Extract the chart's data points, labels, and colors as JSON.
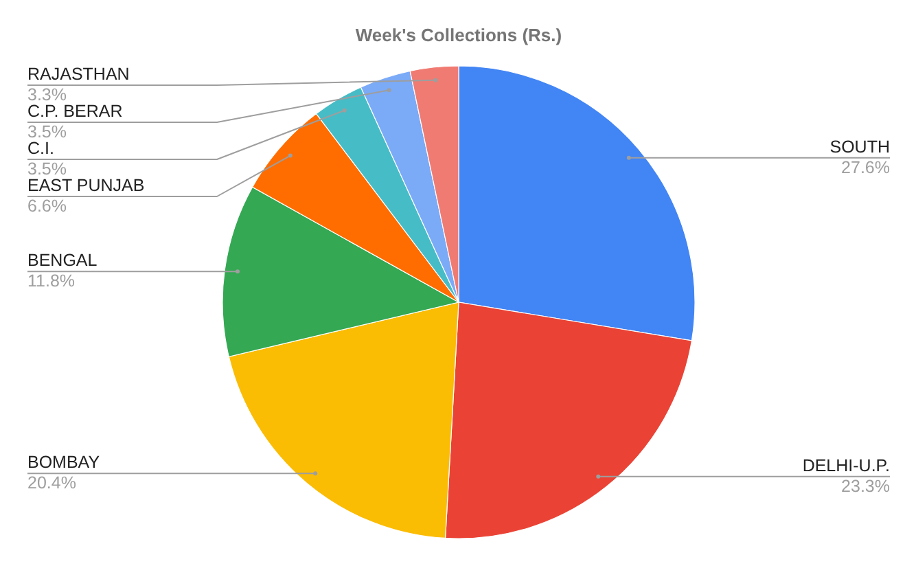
{
  "chart_data": {
    "type": "pie",
    "title": "Week's Collections (Rs.)",
    "categories": [
      "SOUTH",
      "DELHI-U.P.",
      "BOMBAY",
      "BENGAL",
      "EAST PUNJAB",
      "C.I.",
      "C.P. BERAR",
      "RAJASTHAN"
    ],
    "values": [
      27.6,
      23.3,
      20.4,
      11.8,
      6.6,
      3.5,
      3.5,
      3.3
    ],
    "colors": [
      "#4285f4",
      "#ea4335",
      "#fbbc04",
      "#34a853",
      "#ff6d01",
      "#46bdc6",
      "#7baaf7",
      "#f07b72"
    ],
    "value_labels": [
      "27.6%",
      "23.3%",
      "20.4%",
      "11.8%",
      "6.6%",
      "3.5%",
      "3.5%",
      "3.3%"
    ]
  }
}
